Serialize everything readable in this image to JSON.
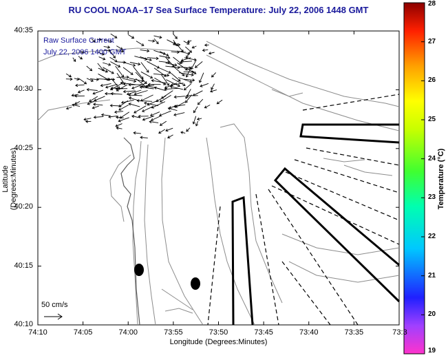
{
  "title": "RU COOL  NOAA–17  Sea Surface Temperature:  July 22, 2006 1448 GMT",
  "legend": {
    "line1": "Raw Surface Current",
    "line2": "July 22, 2006 1400 GMT"
  },
  "scale_label": "50 cm/s",
  "axes": {
    "xlabel": "Longitude (Degrees:Minutes)",
    "ylabel": "Latitude (Degrees:Minutes)",
    "x_ticks": [
      "74:10",
      "74:05",
      "74:00",
      "73:55",
      "73:50",
      "73:45",
      "73:40",
      "73:35",
      "73:3"
    ],
    "y_ticks": [
      "40:35",
      "40:30",
      "40:25",
      "40:20",
      "40:15",
      "40:10"
    ]
  },
  "colorbar": {
    "label": "Temperature (°C)",
    "ticks": [
      "28",
      "27",
      "26",
      "25",
      "24",
      "23",
      "22",
      "21",
      "20",
      "19"
    ],
    "range": [
      19,
      28
    ]
  },
  "colors": {
    "title": "#1a1a9c",
    "contour": "#8c8c8c",
    "lines": "#000000"
  },
  "map": {
    "x_range_deg": [
      -74.1667,
      -73.55
    ],
    "y_range_deg": [
      40.1667,
      40.5833
    ],
    "markers": [
      {
        "name": "buoy-1",
        "lon": -73.9778,
        "lat": 40.2444
      },
      {
        "name": "buoy-2",
        "lon": -73.87,
        "lat": 40.2222
      }
    ]
  }
}
